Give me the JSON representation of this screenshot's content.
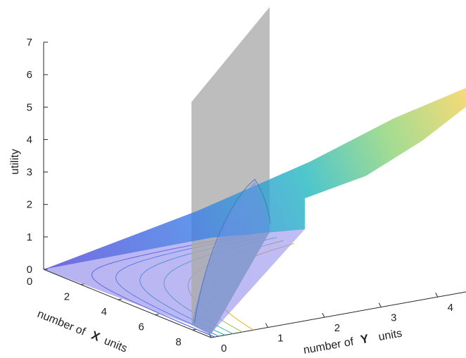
{
  "chart_data": {
    "type": "surface3d",
    "title": "",
    "zlabel": "utility",
    "xlabel": {
      "prefix": "number of",
      "var": "X",
      "suffix": "units"
    },
    "ylabel": {
      "prefix": "number of",
      "var": "Y",
      "suffix": "units"
    },
    "x_ticks": [
      "0",
      "2",
      "4",
      "6",
      "8"
    ],
    "y_ticks": [
      "0",
      "1",
      "2",
      "3",
      "4"
    ],
    "z_ticks": [
      "0",
      "1",
      "2",
      "3",
      "4",
      "5",
      "6",
      "7"
    ],
    "xlim": [
      0,
      9
    ],
    "ylim": [
      0,
      4.5
    ],
    "zlim": [
      0,
      7
    ],
    "utility_surface": {
      "z_at_max_x_max_y": 5.7,
      "colormap": "parula",
      "opacity": 0.7
    },
    "budget_plane": {
      "x_intercept": 8.5,
      "y_intercept": 0.85,
      "color": "#aaaaaa"
    },
    "utility_curve_along_budget": {
      "start_z": 1.3,
      "end_z": 2.9
    },
    "contour_levels": [
      {
        "level": 1,
        "color": "#3a4fd8"
      },
      {
        "level": 1.5,
        "color": "#2c7fe0"
      },
      {
        "level": 2,
        "color": "#1aa5c8"
      },
      {
        "level": 2.5,
        "color": "#2cbfa0"
      },
      {
        "level": 3,
        "color": "#9ac14a"
      },
      {
        "level": 3.5,
        "color": "#e2b51e"
      }
    ],
    "grid": false
  }
}
